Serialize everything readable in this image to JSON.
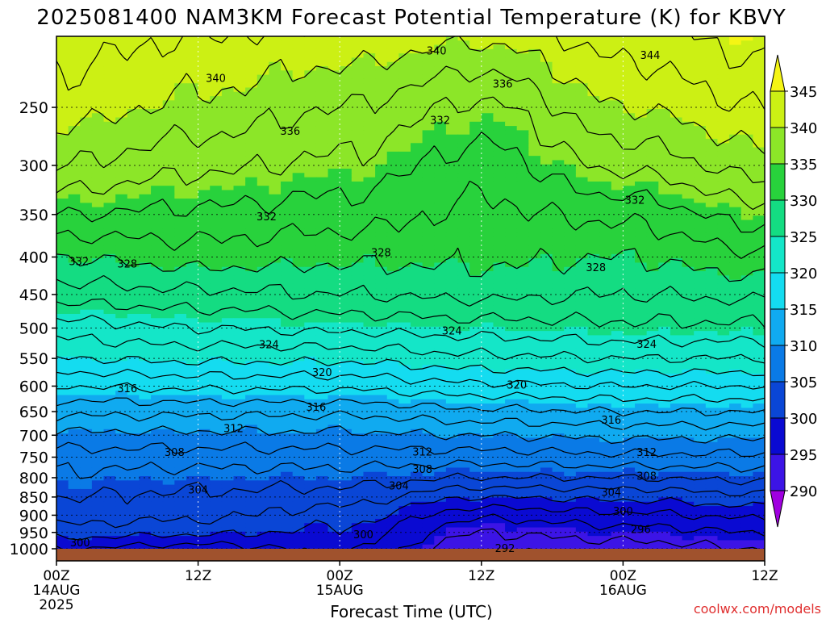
{
  "chart_data": {
    "type": "heatmap",
    "title": "2025081400 NAM3KM Forecast Potential Temperature (K) for KBVY",
    "xlabel": "Forecast Time (UTC)",
    "ylabel": "",
    "y_scale": "log",
    "y_reversed": true,
    "xlim": [
      0,
      60
    ],
    "ylim": [
      1000,
      200
    ],
    "x_ticks": [
      {
        "value": 0,
        "label": "00Z",
        "sub": "14AUG",
        "sub2": "2025"
      },
      {
        "value": 12,
        "label": "12Z",
        "sub": "",
        "sub2": ""
      },
      {
        "value": 24,
        "label": "00Z",
        "sub": "15AUG",
        "sub2": ""
      },
      {
        "value": 36,
        "label": "12Z",
        "sub": "",
        "sub2": ""
      },
      {
        "value": 48,
        "label": "00Z",
        "sub": "16AUG",
        "sub2": ""
      },
      {
        "value": 60,
        "label": "12Z",
        "sub": "",
        "sub2": ""
      }
    ],
    "y_ticks": [
      250,
      300,
      350,
      400,
      450,
      500,
      550,
      600,
      650,
      700,
      750,
      800,
      850,
      900,
      950,
      1000
    ],
    "grid": true,
    "contour_interval": 2,
    "contour_labels": [
      {
        "x": 0.6,
        "p": 270,
        "label": ""
      },
      {
        "x": 13.5,
        "p": 228,
        "label": "340"
      },
      {
        "x": 32.2,
        "p": 209,
        "label": "340"
      },
      {
        "x": 50.3,
        "p": 212,
        "label": "344"
      },
      {
        "x": 37.8,
        "p": 232,
        "label": "336"
      },
      {
        "x": 19.8,
        "p": 269,
        "label": "336"
      },
      {
        "x": 32.5,
        "p": 260,
        "label": "332"
      },
      {
        "x": 17.8,
        "p": 352,
        "label": "332"
      },
      {
        "x": 49.0,
        "p": 334,
        "label": "332"
      },
      {
        "x": 1.9,
        "p": 405,
        "label": "332"
      },
      {
        "x": 6.0,
        "p": 408,
        "label": "328"
      },
      {
        "x": 27.5,
        "p": 394,
        "label": "328"
      },
      {
        "x": 45.7,
        "p": 413,
        "label": "328"
      },
      {
        "x": 18.0,
        "p": 526,
        "label": "324"
      },
      {
        "x": 33.5,
        "p": 504,
        "label": "324"
      },
      {
        "x": 50.0,
        "p": 525,
        "label": "324"
      },
      {
        "x": 22.5,
        "p": 574,
        "label": "320"
      },
      {
        "x": 39.0,
        "p": 597,
        "label": "320"
      },
      {
        "x": 6.0,
        "p": 604,
        "label": "316"
      },
      {
        "x": 22.0,
        "p": 640,
        "label": "316"
      },
      {
        "x": 47.0,
        "p": 667,
        "label": "316"
      },
      {
        "x": 15.0,
        "p": 685,
        "label": "312"
      },
      {
        "x": 31.0,
        "p": 737,
        "label": "312"
      },
      {
        "x": 50.0,
        "p": 738,
        "label": "312"
      },
      {
        "x": 10.0,
        "p": 738,
        "label": "308"
      },
      {
        "x": 31.0,
        "p": 778,
        "label": "308"
      },
      {
        "x": 50.0,
        "p": 795,
        "label": "308"
      },
      {
        "x": 12.0,
        "p": 830,
        "label": "304"
      },
      {
        "x": 29.0,
        "p": 820,
        "label": "304"
      },
      {
        "x": 47.0,
        "p": 836,
        "label": "304"
      },
      {
        "x": 2.0,
        "p": 980,
        "label": "300"
      },
      {
        "x": 26.0,
        "p": 955,
        "label": "300"
      },
      {
        "x": 48.0,
        "p": 888,
        "label": "300"
      },
      {
        "x": 49.5,
        "p": 940,
        "label": "296"
      },
      {
        "x": 38.0,
        "p": 997,
        "label": "292"
      }
    ],
    "profile": [
      {
        "x": 0,
        "theta": [
          [
            1000,
            298
          ],
          [
            950,
            301
          ],
          [
            900,
            303
          ],
          [
            850,
            304
          ],
          [
            800,
            305.5
          ],
          [
            750,
            307
          ],
          [
            700,
            309.5
          ],
          [
            650,
            312.5
          ],
          [
            600,
            316
          ],
          [
            550,
            320
          ],
          [
            500,
            323
          ],
          [
            450,
            327
          ],
          [
            400,
            330
          ],
          [
            350,
            334
          ],
          [
            300,
            338
          ],
          [
            250,
            341
          ],
          [
            200,
            343
          ]
        ]
      },
      {
        "x": 12,
        "theta": [
          [
            1000,
            297
          ],
          [
            950,
            300.5
          ],
          [
            900,
            302.5
          ],
          [
            850,
            303.5
          ],
          [
            800,
            305
          ],
          [
            750,
            307
          ],
          [
            700,
            309.5
          ],
          [
            650,
            312.5
          ],
          [
            600,
            316.5
          ],
          [
            550,
            320.5
          ],
          [
            500,
            324
          ],
          [
            450,
            327.5
          ],
          [
            400,
            331
          ],
          [
            350,
            333.5
          ],
          [
            300,
            336.5
          ],
          [
            250,
            339.5
          ],
          [
            200,
            342
          ]
        ]
      },
      {
        "x": 24,
        "theta": [
          [
            1000,
            298.5
          ],
          [
            950,
            299.5
          ],
          [
            900,
            301
          ],
          [
            850,
            303
          ],
          [
            800,
            305
          ],
          [
            750,
            307
          ],
          [
            700,
            309.5
          ],
          [
            650,
            312.5
          ],
          [
            600,
            316.5
          ],
          [
            550,
            320.5
          ],
          [
            500,
            324.5
          ],
          [
            450,
            328
          ],
          [
            400,
            330.5
          ],
          [
            350,
            333
          ],
          [
            300,
            335.5
          ],
          [
            250,
            338
          ],
          [
            200,
            341.5
          ]
        ]
      },
      {
        "x": 36,
        "theta": [
          [
            1000,
            292.5
          ],
          [
            950,
            294
          ],
          [
            900,
            296.5
          ],
          [
            850,
            300
          ],
          [
            800,
            304
          ],
          [
            750,
            307
          ],
          [
            700,
            310
          ],
          [
            650,
            313.5
          ],
          [
            600,
            317.5
          ],
          [
            550,
            321.5
          ],
          [
            500,
            325
          ],
          [
            450,
            328.5
          ],
          [
            400,
            330.5
          ],
          [
            350,
            331.5
          ],
          [
            300,
            333
          ],
          [
            250,
            335.5
          ],
          [
            200,
            340.5
          ]
        ]
      },
      {
        "x": 48,
        "theta": [
          [
            1000,
            293
          ],
          [
            950,
            295
          ],
          [
            900,
            297.5
          ],
          [
            850,
            300.5
          ],
          [
            800,
            304
          ],
          [
            750,
            307.5
          ],
          [
            700,
            310.5
          ],
          [
            650,
            314
          ],
          [
            600,
            318
          ],
          [
            550,
            322
          ],
          [
            500,
            325.5
          ],
          [
            450,
            328
          ],
          [
            400,
            330
          ],
          [
            350,
            332.5
          ],
          [
            300,
            336.5
          ],
          [
            250,
            340
          ],
          [
            200,
            343
          ]
        ]
      },
      {
        "x": 60,
        "theta": [
          [
            1000,
            294
          ],
          [
            950,
            296
          ],
          [
            900,
            298.5
          ],
          [
            850,
            301.5
          ],
          [
            800,
            304.5
          ],
          [
            750,
            307.5
          ],
          [
            700,
            310.5
          ],
          [
            650,
            314
          ],
          [
            600,
            318
          ],
          [
            550,
            322
          ],
          [
            500,
            325.5
          ],
          [
            450,
            328.5
          ],
          [
            400,
            331.5
          ],
          [
            350,
            335
          ],
          [
            300,
            339
          ],
          [
            250,
            342
          ],
          [
            200,
            345
          ]
        ]
      }
    ],
    "colorbar": {
      "levels": [
        290,
        295,
        300,
        305,
        310,
        315,
        320,
        325,
        330,
        335,
        340,
        345
      ],
      "labels": [
        "345",
        "340",
        "335",
        "330",
        "325",
        "320",
        "315",
        "310",
        "305",
        "300",
        "295",
        "290"
      ],
      "colors": [
        "#a000e0",
        "#3c14e6",
        "#0a0ad2",
        "#0a46d6",
        "#0a7ae6",
        "#10aaf0",
        "#14dcf0",
        "#14e6c8",
        "#14dc82",
        "#28d23c",
        "#8ce628",
        "#ccf014",
        "#f5f514"
      ]
    },
    "ground_color": "#a0522d"
  },
  "footer": {
    "credit": "coolwx.com/models"
  }
}
